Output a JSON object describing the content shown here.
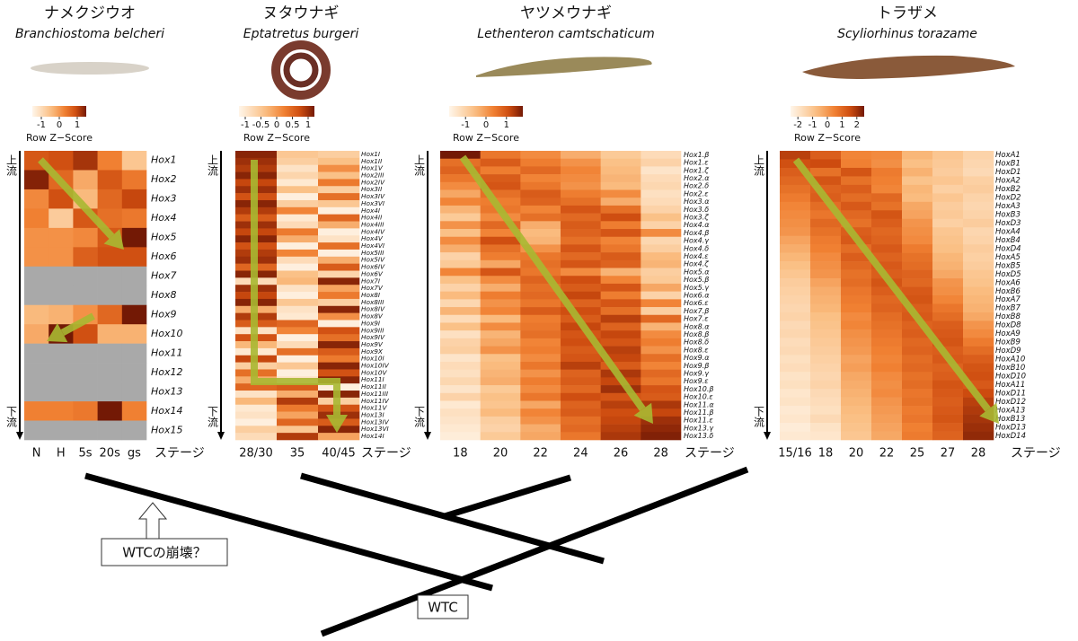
{
  "chart_data": [
    {
      "type": "heatmap",
      "title": "ナメクジウオ",
      "subtitle": "Branchiostoma belcheri",
      "colorbar_label": "Row Z−Score",
      "zlim": [
        -1.5,
        1.5
      ],
      "zticks": [
        -1,
        0,
        1
      ],
      "x_label": "ステージ",
      "upstream": "上流",
      "downstream": "下流",
      "categories": [
        "N",
        "H",
        "5s",
        "20s",
        "gs"
      ],
      "rows": [
        "Hox1",
        "Hox2",
        "Hox3",
        "Hox4",
        "Hox5",
        "Hox6",
        "Hox7",
        "Hox8",
        "Hox9",
        "Hox10",
        "Hox11",
        "Hox12",
        "Hox13",
        "Hox14",
        "Hox15"
      ],
      "values": [
        [
          0.8,
          0.9,
          1.2,
          0.3,
          -0.6
        ],
        [
          1.4,
          0.6,
          -0.2,
          0.8,
          0.4
        ],
        [
          0.2,
          0.9,
          -0.4,
          0.6,
          1.0
        ],
        [
          0.3,
          -0.7,
          0.8,
          0.5,
          0.4
        ],
        [
          0.1,
          0.1,
          0.2,
          0.8,
          1.5
        ],
        [
          0.1,
          0.1,
          0.7,
          0.9,
          0.9
        ],
        [
          null,
          null,
          null,
          null,
          null
        ],
        [
          null,
          null,
          null,
          null,
          null
        ],
        [
          -0.4,
          -0.3,
          0.1,
          0.6,
          1.5
        ],
        [
          -0.2,
          1.6,
          0.9,
          -0.3,
          -0.3
        ],
        [
          null,
          null,
          null,
          null,
          null
        ],
        [
          null,
          null,
          null,
          null,
          null
        ],
        [
          null,
          null,
          null,
          null,
          null
        ],
        [
          0.3,
          0.3,
          0.4,
          1.6,
          0.3
        ],
        [
          null,
          null,
          null,
          null,
          null
        ]
      ]
    },
    {
      "type": "heatmap",
      "title": "ヌタウナギ",
      "subtitle": "Eptatretus burgeri",
      "colorbar_label": "Row Z−Score",
      "zlim": [
        -1.2,
        1.2
      ],
      "zticks": [
        -1,
        -0.5,
        0,
        0.5,
        1
      ],
      "x_label": "ステージ",
      "upstream": "上流",
      "downstream": "下流",
      "categories": [
        "28/30",
        "35",
        "40/45"
      ],
      "rows": [
        "Hox1I",
        "Hox1II",
        "Hox1V",
        "Hox2III",
        "Hox2IV",
        "Hox3II",
        "Hox3IV",
        "Hox3VI",
        "Hox4I",
        "Hox4II",
        "Hox4III",
        "Hox4IV",
        "Hox4V",
        "Hox4VI",
        "Hox5III",
        "Hox5IV",
        "Hox6IV",
        "Hox6V",
        "Hox7I",
        "Hox7V",
        "Hox8I",
        "Hox8III",
        "Hox8IV",
        "Hox8V",
        "Hox9I",
        "Hox9III",
        "Hox9IV",
        "Hox9V",
        "Hox9X",
        "Hox10I",
        "Hox10IV",
        "Hox10V",
        "Hox11I",
        "Hox11II",
        "Hox11III",
        "Hox11IV",
        "Hox11V",
        "Hox13I",
        "Hox13IV",
        "Hox13VI",
        "Hox14I"
      ],
      "values": [
        [
          1.1,
          -0.5,
          -0.6
        ],
        [
          1.0,
          -0.6,
          -0.4
        ],
        [
          0.9,
          -0.9,
          0.1
        ],
        [
          1.1,
          -0.7,
          -0.4
        ],
        [
          0.8,
          -1.0,
          0.3
        ],
        [
          1.0,
          -0.4,
          -0.6
        ],
        [
          0.7,
          -1.1,
          0.4
        ],
        [
          1.1,
          -0.6,
          -0.5
        ],
        [
          0.9,
          0.2,
          -1.1
        ],
        [
          0.6,
          -1.0,
          0.5
        ],
        [
          1.0,
          -0.8,
          -0.2
        ],
        [
          0.8,
          0.3,
          -1.1
        ],
        [
          1.1,
          -0.2,
          -0.9
        ],
        [
          0.7,
          -1.1,
          0.4
        ],
        [
          0.9,
          0.2,
          -1.1
        ],
        [
          1.0,
          -0.8,
          -0.2
        ],
        [
          0.5,
          -1.1,
          0.6
        ],
        [
          1.1,
          -0.4,
          -0.7
        ],
        [
          -0.8,
          -0.3,
          1.1
        ],
        [
          1.0,
          -0.9,
          -0.1
        ],
        [
          0.8,
          -1.1,
          0.3
        ],
        [
          1.1,
          -0.5,
          -0.6
        ],
        [
          -0.2,
          -0.9,
          1.1
        ],
        [
          0.9,
          -1.0,
          0.1
        ],
        [
          0.6,
          0.5,
          -1.1
        ],
        [
          -0.9,
          0.2,
          0.7
        ],
        [
          0.7,
          -1.1,
          0.4
        ],
        [
          -0.3,
          -0.8,
          1.1
        ],
        [
          -1.0,
          0.4,
          0.6
        ],
        [
          0.8,
          -1.1,
          0.3
        ],
        [
          -0.6,
          -0.5,
          1.1
        ],
        [
          0.4,
          -1.1,
          0.7
        ],
        [
          -0.2,
          -0.9,
          1.1
        ],
        [
          0.5,
          0.6,
          -1.1
        ],
        [
          -0.9,
          -0.2,
          1.1
        ],
        [
          -0.3,
          0.9,
          -0.6
        ],
        [
          -1.0,
          0.3,
          0.7
        ],
        [
          -0.9,
          -0.1,
          1.0
        ],
        [
          -1.1,
          0.5,
          0.6
        ],
        [
          -0.6,
          -0.5,
          1.1
        ],
        [
          -0.8,
          0.9,
          -0.1
        ]
      ]
    },
    {
      "type": "heatmap",
      "title": "ヤツメウナギ",
      "subtitle": "Lethenteron camtschaticum",
      "colorbar_label": "Row Z−Score",
      "zlim": [
        -1.8,
        1.8
      ],
      "zticks": [
        -1,
        0,
        1
      ],
      "x_label": "ステージ",
      "upstream": "上流",
      "downstream": "下流",
      "categories": [
        "18",
        "20",
        "22",
        "24",
        "26",
        "28"
      ],
      "rows": [
        "Hox1.β",
        "Hox1.ε",
        "Hox1.ζ",
        "Hox2.α",
        "Hox2.δ",
        "Hox2.ε",
        "Hox3.α",
        "Hox3.δ",
        "Hox3.ζ",
        "Hox4.α",
        "Hox4.β",
        "Hox4.γ",
        "Hox4.δ",
        "Hox4.ε",
        "Hox4.ζ",
        "Hox5.α",
        "Hox5.β",
        "Hox5.γ",
        "Hox6.α",
        "Hox6.ε",
        "Hox7.β",
        "Hox7.ε",
        "Hox8.α",
        "Hox8.β",
        "Hox8.δ",
        "Hox8.ε",
        "Hox9.α",
        "Hox9.β",
        "Hox9.γ",
        "Hox9.ε",
        "Hox10.β",
        "Hox10.ε",
        "Hox11.α",
        "Hox11.β",
        "Hox11.ε",
        "Hox13.γ",
        "Hox13.δ"
      ],
      "values": [
        [
          1.8,
          0.5,
          0.2,
          -0.3,
          -0.8,
          -1.2
        ],
        [
          0.6,
          0.9,
          0.4,
          0.1,
          -0.6,
          -1.0
        ],
        [
          0.8,
          0.4,
          0.7,
          0.3,
          -0.5,
          -1.4
        ],
        [
          0.5,
          0.9,
          0.3,
          0.2,
          -0.4,
          -1.2
        ],
        [
          0.2,
          1.0,
          0.5,
          0.1,
          -0.5,
          -1.1
        ],
        [
          -0.2,
          0.6,
          0.9,
          0.4,
          0.2,
          -1.3
        ],
        [
          0.3,
          0.4,
          0.8,
          0.6,
          -0.3,
          -1.2
        ],
        [
          -0.4,
          0.5,
          0.3,
          1.0,
          0.6,
          -1.0
        ],
        [
          -0.8,
          0.2,
          0.6,
          0.7,
          1.1,
          -0.6
        ],
        [
          0.1,
          0.7,
          -0.3,
          0.9,
          0.4,
          -1.0
        ],
        [
          -0.6,
          0.3,
          -0.5,
          0.8,
          1.0,
          0.2
        ],
        [
          0.2,
          1.1,
          -0.4,
          0.6,
          0.3,
          -1.1
        ],
        [
          -0.3,
          0.6,
          0.1,
          1.0,
          0.5,
          -0.9
        ],
        [
          -1.0,
          0.4,
          0.5,
          0.7,
          0.9,
          -0.5
        ],
        [
          -0.8,
          -0.2,
          0.6,
          1.0,
          0.8,
          -0.4
        ],
        [
          0.3,
          1.0,
          0.5,
          0.2,
          -0.4,
          -0.9
        ],
        [
          -0.6,
          0.2,
          0.8,
          1.1,
          0.3,
          -0.8
        ],
        [
          -1.0,
          -0.3,
          0.6,
          0.9,
          1.0,
          -0.2
        ],
        [
          -0.5,
          0.4,
          0.7,
          1.2,
          0.4,
          -1.0
        ],
        [
          -1.1,
          0.1,
          0.5,
          0.8,
          1.0,
          0.3
        ],
        [
          -0.4,
          0.3,
          0.9,
          1.1,
          0.6,
          -0.9
        ],
        [
          -1.2,
          -0.5,
          0.4,
          0.9,
          1.3,
          0.7
        ],
        [
          -0.6,
          0.2,
          0.5,
          1.2,
          0.8,
          -0.4
        ],
        [
          -1.3,
          -0.4,
          0.6,
          1.0,
          1.2,
          0.2
        ],
        [
          -1.0,
          -0.2,
          0.3,
          1.1,
          1.0,
          0.4
        ],
        [
          -0.9,
          0.1,
          0.4,
          0.9,
          1.3,
          0.1
        ],
        [
          -1.4,
          -0.6,
          0.2,
          1.0,
          1.2,
          0.6
        ],
        [
          -1.2,
          -0.5,
          0.5,
          1.3,
          0.9,
          0.3
        ],
        [
          -1.3,
          -0.4,
          0.1,
          0.8,
          1.4,
          0.7
        ],
        [
          -1.1,
          -0.3,
          0.4,
          0.9,
          1.2,
          0.5
        ],
        [
          -1.4,
          -0.8,
          0.2,
          0.7,
          1.5,
          1.0
        ],
        [
          -1.0,
          -0.6,
          0.5,
          1.1,
          1.0,
          0.9
        ],
        [
          -1.5,
          -0.7,
          -0.2,
          0.8,
          1.3,
          1.4
        ],
        [
          -1.3,
          -0.5,
          0.3,
          0.9,
          1.1,
          1.2
        ],
        [
          -1.4,
          -0.9,
          0.1,
          0.6,
          1.2,
          1.5
        ],
        [
          -1.5,
          -1.0,
          -0.3,
          0.7,
          1.3,
          1.6
        ],
        [
          -1.6,
          -0.8,
          -0.2,
          0.5,
          1.4,
          1.7
        ]
      ]
    },
    {
      "type": "heatmap",
      "title": "トラザメ",
      "subtitle": "Scyliorhinus torazame",
      "colorbar_label": "Row Z−Score",
      "zlim": [
        -2.5,
        2.5
      ],
      "zticks": [
        -2,
        -1,
        0,
        1,
        2
      ],
      "x_label": "ステージ",
      "upstream": "上流",
      "downstream": "下流",
      "categories": [
        "15/16",
        "18",
        "20",
        "22",
        "25",
        "27",
        "28"
      ],
      "rows": [
        "HoxA1",
        "HoxB1",
        "HoxD1",
        "HoxA2",
        "HoxB2",
        "HoxD2",
        "HoxA3",
        "HoxB3",
        "HoxD3",
        "HoxA4",
        "HoxB4",
        "HoxD4",
        "HoxA5",
        "HoxB5",
        "HoxD5",
        "HoxA6",
        "HoxB6",
        "HoxA7",
        "HoxB7",
        "HoxB8",
        "HoxD8",
        "HoxA9",
        "HoxB9",
        "HoxD9",
        "HoxA10",
        "HoxB10",
        "HoxD10",
        "HoxA11",
        "HoxD11",
        "HoxD12",
        "HoxA13",
        "HoxB13",
        "HoxD13",
        "HoxD14"
      ],
      "values": [
        [
          1.8,
          1.2,
          0.4,
          0.3,
          -0.6,
          -1.0,
          -1.4
        ],
        [
          1.5,
          1.6,
          0.5,
          0.2,
          -0.8,
          -1.1,
          -1.5
        ],
        [
          1.2,
          0.8,
          1.4,
          0.6,
          -0.5,
          -1.2,
          -1.6
        ],
        [
          1.0,
          1.4,
          0.8,
          0.5,
          -0.9,
          -1.0,
          -1.3
        ],
        [
          0.8,
          1.1,
          1.2,
          0.4,
          -0.6,
          -1.3,
          -1.2
        ],
        [
          0.6,
          1.2,
          0.9,
          1.0,
          -0.7,
          -1.0,
          -1.4
        ],
        [
          0.4,
          0.9,
          1.3,
          0.8,
          -0.3,
          -1.2,
          -1.5
        ],
        [
          0.3,
          0.7,
          1.0,
          1.4,
          -0.2,
          -1.1,
          -1.4
        ],
        [
          0.2,
          1.0,
          0.8,
          1.2,
          0.1,
          -1.3,
          -1.2
        ],
        [
          0.1,
          0.8,
          1.2,
          1.0,
          0.2,
          -1.0,
          -1.5
        ],
        [
          -0.2,
          0.6,
          1.3,
          1.1,
          0.3,
          -0.9,
          -1.4
        ],
        [
          -0.4,
          0.5,
          0.9,
          1.3,
          0.6,
          -0.8,
          -1.2
        ],
        [
          -0.6,
          0.3,
          1.2,
          1.1,
          0.8,
          -0.6,
          -1.3
        ],
        [
          -0.8,
          0.2,
          1.0,
          1.3,
          0.9,
          -0.5,
          -1.2
        ],
        [
          -1.0,
          0.1,
          0.8,
          1.2,
          1.1,
          -0.3,
          -1.0
        ],
        [
          -1.2,
          -0.2,
          0.9,
          1.4,
          1.0,
          0.1,
          -0.9
        ],
        [
          -1.3,
          -0.4,
          0.7,
          1.2,
          1.3,
          0.2,
          -0.7
        ],
        [
          -1.4,
          -0.5,
          0.6,
          1.0,
          1.4,
          0.4,
          -0.6
        ],
        [
          -1.5,
          -0.6,
          0.5,
          1.1,
          1.2,
          0.7,
          -0.5
        ],
        [
          -1.4,
          -0.8,
          0.3,
          0.9,
          1.3,
          0.9,
          -0.3
        ],
        [
          -1.6,
          -0.9,
          0.4,
          0.8,
          1.1,
          1.2,
          0.1
        ],
        [
          -1.5,
          -1.0,
          0.2,
          0.7,
          1.2,
          1.3,
          0.3
        ],
        [
          -1.7,
          -1.1,
          0.1,
          0.6,
          1.0,
          1.4,
          0.6
        ],
        [
          -1.6,
          -1.2,
          0.0,
          0.5,
          1.1,
          1.2,
          0.9
        ],
        [
          -1.8,
          -1.3,
          -0.2,
          0.4,
          0.9,
          1.3,
          1.2
        ],
        [
          -1.7,
          -1.4,
          -0.1,
          0.5,
          1.0,
          1.1,
          1.4
        ],
        [
          -1.9,
          -1.5,
          -0.3,
          0.3,
          0.8,
          1.2,
          1.5
        ],
        [
          -1.8,
          -1.4,
          -0.4,
          0.2,
          0.9,
          1.4,
          1.3
        ],
        [
          -2.0,
          -1.6,
          -0.5,
          0.3,
          0.7,
          1.3,
          1.6
        ],
        [
          -1.9,
          -1.7,
          -0.6,
          0.1,
          0.8,
          1.2,
          1.8
        ],
        [
          -2.1,
          -1.8,
          -0.7,
          0.0,
          0.6,
          1.3,
          1.9
        ],
        [
          -2.0,
          -1.6,
          -0.8,
          -0.1,
          0.7,
          1.4,
          2.0
        ],
        [
          -2.2,
          -1.9,
          -0.9,
          -0.2,
          0.5,
          1.2,
          2.1
        ],
        [
          -2.1,
          -2.0,
          -1.0,
          -0.3,
          0.6,
          1.1,
          2.2
        ]
      ]
    }
  ],
  "tree": {
    "labels": [
      "WTCの崩壊？",
      "WTC"
    ]
  }
}
